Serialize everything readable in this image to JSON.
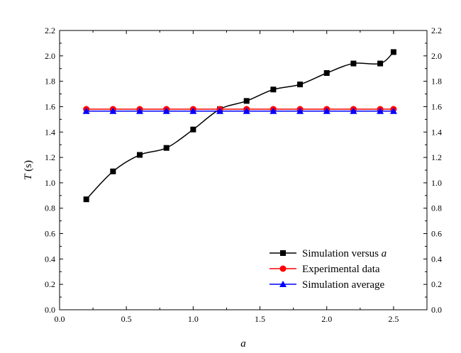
{
  "chart_data": {
    "type": "line",
    "title": "",
    "xlabel": "a",
    "ylabel_italic": "T",
    "ylabel_unit": " (s)",
    "xlim": [
      0.0,
      2.75
    ],
    "ylim": [
      0.0,
      2.2
    ],
    "x_ticks": [
      0.0,
      0.5,
      1.0,
      1.5,
      2.0,
      2.5
    ],
    "x_tick_labels": [
      "0.0",
      "0.5",
      "1.0",
      "1.5",
      "2.0",
      "2.5"
    ],
    "y_ticks": [
      0.0,
      0.2,
      0.4,
      0.6,
      0.8,
      1.0,
      1.2,
      1.4,
      1.6,
      1.8,
      2.0,
      2.2
    ],
    "y_tick_labels": [
      "0.0",
      "0.2",
      "0.4",
      "0.6",
      "0.8",
      "1.0",
      "1.2",
      "1.4",
      "1.6",
      "1.8",
      "2.0",
      "2.2"
    ],
    "right_axis_mirrored": true,
    "grid": false,
    "legend_position": "bottom-right",
    "series": [
      {
        "name_prefix": "Simulation versus ",
        "name_italic": "a",
        "color": "#000000",
        "marker": "square",
        "smooth": true,
        "x": [
          0.2,
          0.4,
          0.6,
          0.8,
          1.0,
          1.2,
          1.4,
          1.6,
          1.8,
          2.0,
          2.2,
          2.4,
          2.5
        ],
        "y": [
          0.87,
          1.09,
          1.22,
          1.275,
          1.42,
          1.58,
          1.645,
          1.735,
          1.775,
          1.865,
          1.94,
          1.94,
          2.03
        ]
      },
      {
        "name_prefix": "Experimental data",
        "name_italic": "",
        "color": "#ff0000",
        "marker": "circle",
        "smooth": false,
        "x": [
          0.2,
          0.4,
          0.6,
          0.8,
          1.0,
          1.2,
          1.4,
          1.6,
          1.8,
          2.0,
          2.2,
          2.4,
          2.5
        ],
        "y": [
          1.58,
          1.58,
          1.58,
          1.58,
          1.58,
          1.58,
          1.58,
          1.58,
          1.58,
          1.58,
          1.58,
          1.58,
          1.58
        ]
      },
      {
        "name_prefix": "Simulation average",
        "name_italic": "",
        "color": "#0000ff",
        "marker": "triangle",
        "smooth": false,
        "x": [
          0.2,
          0.4,
          0.6,
          0.8,
          1.0,
          1.2,
          1.4,
          1.6,
          1.8,
          2.0,
          2.2,
          2.4,
          2.5
        ],
        "y": [
          1.565,
          1.565,
          1.565,
          1.565,
          1.565,
          1.565,
          1.565,
          1.565,
          1.565,
          1.565,
          1.565,
          1.565,
          1.565
        ]
      }
    ]
  }
}
